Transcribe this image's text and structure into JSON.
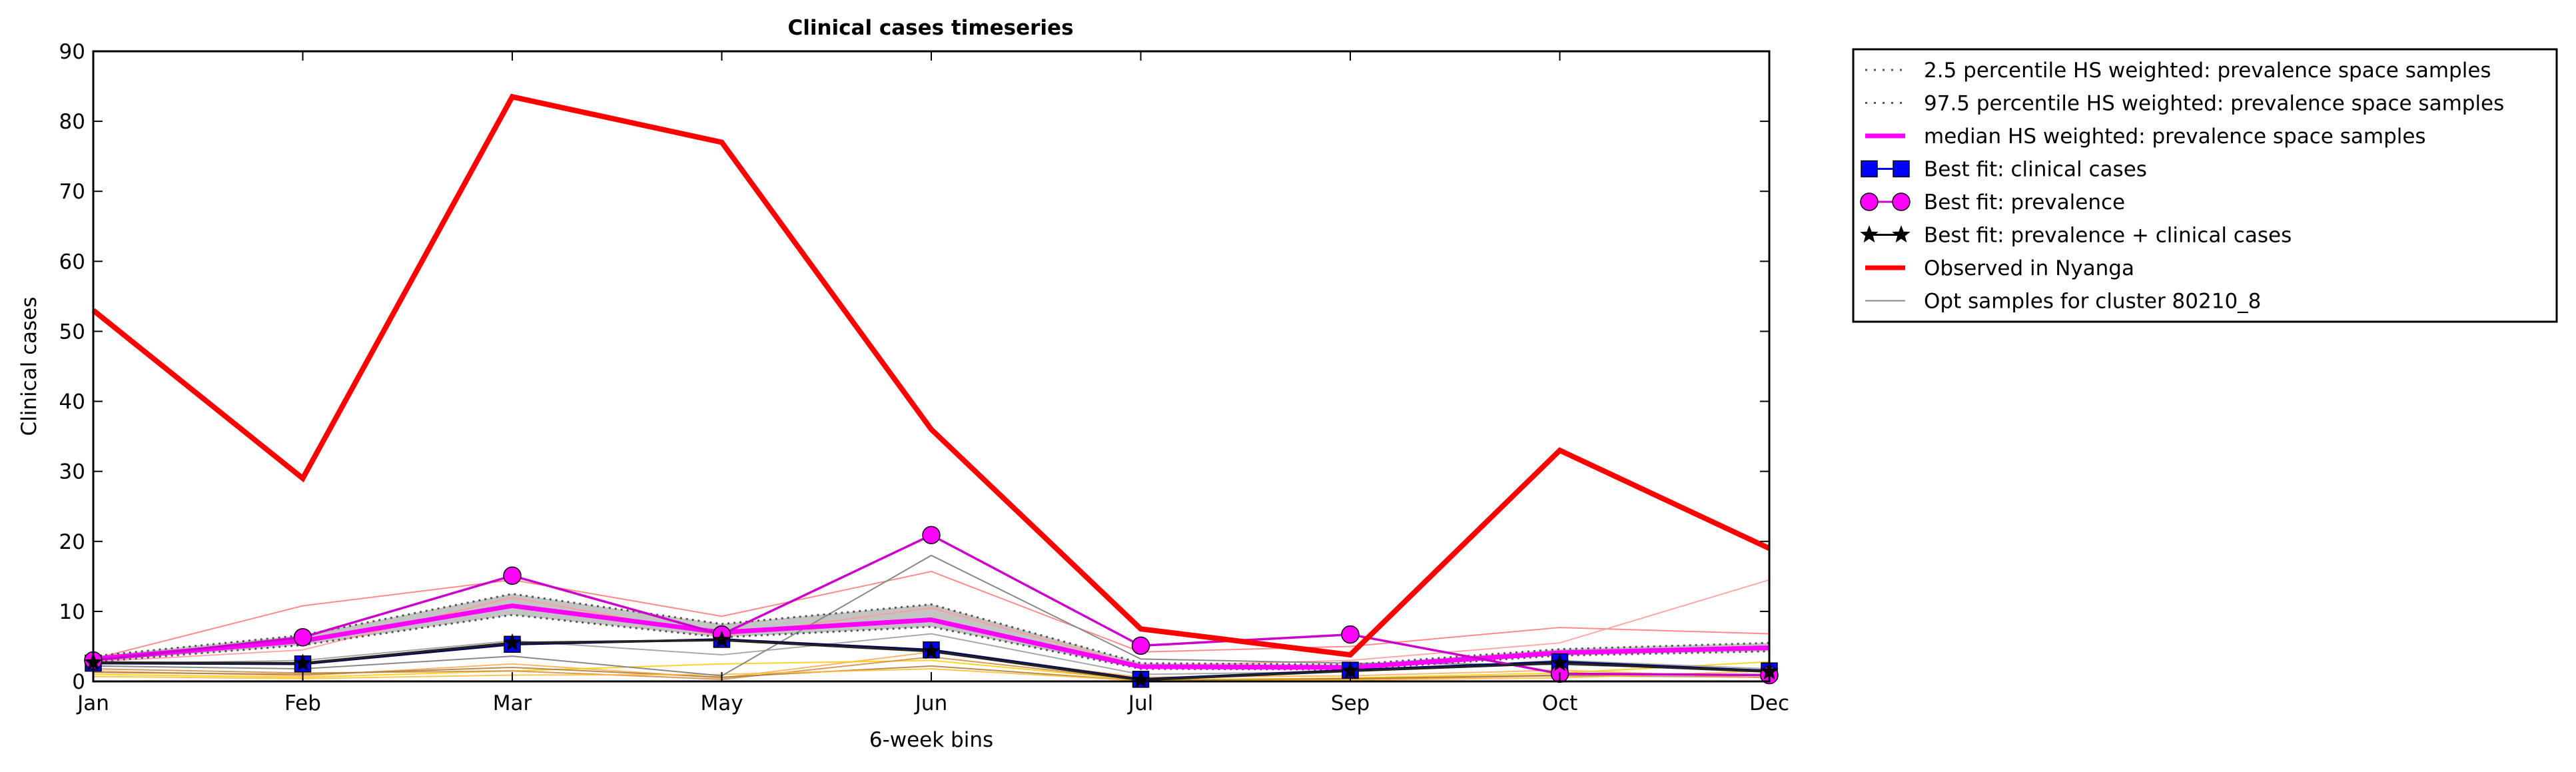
{
  "chart_data": {
    "type": "line",
    "title": "Clinical cases timeseries",
    "xlabel": "6-week bins",
    "ylabel": "Clinical cases",
    "categories": [
      "Jan",
      "Feb",
      "Mar",
      "May",
      "Jun",
      "Jul",
      "Sep",
      "Oct",
      "Dec"
    ],
    "ylim": [
      0,
      90
    ],
    "yticks": [
      0,
      10,
      20,
      30,
      40,
      50,
      60,
      70,
      80,
      90
    ],
    "grid": false,
    "legend_position": "outside-right",
    "series": [
      {
        "name": "2.5 percentile HS weighted: prevalence space samples",
        "style": "dotted",
        "color": "#555555",
        "values": [
          2.8,
          5.2,
          9.5,
          6.3,
          7.8,
          1.8,
          1.7,
          3.7,
          4.3
        ]
      },
      {
        "name": "97.5 percentile HS weighted: prevalence space samples",
        "style": "dotted",
        "color": "#555555",
        "values": [
          3.6,
          6.6,
          12.5,
          8.2,
          11.0,
          2.6,
          2.4,
          4.6,
          5.5
        ]
      },
      {
        "name": "median HS weighted: prevalence space samples",
        "style": "solid",
        "color": "#ff00ff",
        "values": [
          3.2,
          5.8,
          10.8,
          7.0,
          8.8,
          2.1,
          2.0,
          4.1,
          4.8
        ]
      },
      {
        "name": "Best fit: clinical cases",
        "style": "solid",
        "marker": "square",
        "color": "#0000ff",
        "values": [
          2.6,
          2.5,
          5.3,
          6.0,
          4.5,
          0.3,
          1.6,
          2.8,
          1.5
        ]
      },
      {
        "name": "Best fit: prevalence",
        "style": "solid",
        "marker": "circle",
        "color": "#cc00cc",
        "values": [
          3.0,
          6.3,
          15.1,
          6.7,
          20.9,
          5.1,
          6.7,
          1.1,
          0.9
        ]
      },
      {
        "name": "Best fit: prevalence + clinical cases",
        "style": "solid",
        "marker": "star",
        "color": "#000000",
        "values": [
          2.7,
          2.6,
          5.5,
          5.9,
          4.3,
          0.2,
          1.5,
          2.6,
          1.4
        ]
      },
      {
        "name": "Observed in Nyanga",
        "style": "solid",
        "color": "#ff0000",
        "values": [
          53,
          29,
          83.5,
          77,
          36,
          7.5,
          3.8,
          33,
          19
        ]
      },
      {
        "name": "Opt samples for cluster 80210_8",
        "style": "solid",
        "color": "#888888",
        "values": [
          2.2,
          1.8,
          3.6,
          0.8,
          18.0,
          3.2,
          2.6,
          2.4,
          1.6
        ]
      }
    ],
    "extra_sample_lines": [
      {
        "color": "#ff7777",
        "values": [
          3.2,
          10.8,
          14.5,
          9.3,
          15.7,
          4.2,
          5.0,
          7.7,
          6.8
        ]
      },
      {
        "color": "#ff9999",
        "values": [
          2.8,
          4.5,
          12.0,
          6.5,
          10.5,
          2.2,
          3.0,
          5.5,
          14.5
        ]
      },
      {
        "color": "#ffaa55",
        "values": [
          1.5,
          0.8,
          2.5,
          0.5,
          4.2,
          0.6,
          0.8,
          1.6,
          0.5
        ]
      },
      {
        "color": "#ffcc00",
        "values": [
          1.0,
          0.6,
          1.5,
          2.5,
          3.0,
          0.2,
          0.5,
          1.2,
          2.8
        ]
      },
      {
        "color": "#cc8844",
        "values": [
          1.8,
          1.2,
          1.5,
          0.3,
          3.5,
          0.2,
          0.3,
          0.8,
          0.6
        ]
      },
      {
        "color": "#999999",
        "values": [
          2.5,
          3.0,
          5.8,
          3.8,
          6.8,
          1.0,
          1.4,
          3.0,
          1.8
        ]
      },
      {
        "color": "#aa7733",
        "values": [
          1.3,
          1.0,
          2.0,
          0.6,
          2.2,
          0.1,
          0.4,
          0.9,
          1.0
        ]
      },
      {
        "color": "#ffbb33",
        "values": [
          0.7,
          0.4,
          0.9,
          1.0,
          1.8,
          0.1,
          0.2,
          0.5,
          1.5
        ]
      }
    ]
  }
}
